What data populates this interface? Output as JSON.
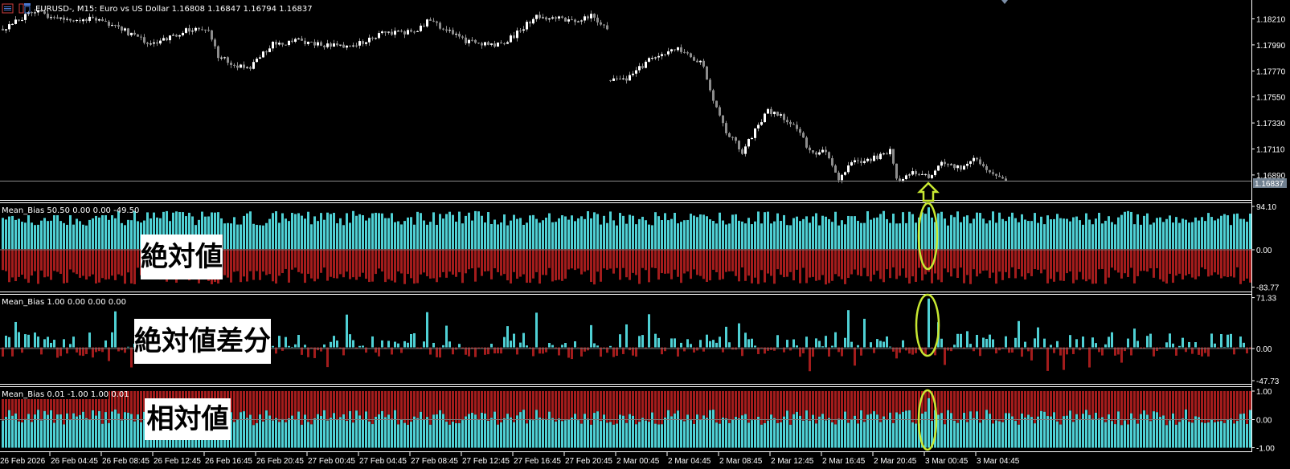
{
  "header": {
    "title": "EURUSD-, M15:  Euro vs US Dollar  1.16808 1.16847 1.16794 1.16837",
    "icons": [
      "trade-panel-icon",
      "one-click-trading-icon"
    ]
  },
  "colors": {
    "background": "#000000",
    "positive_bar": "#4fd0d4",
    "negative_bar": "#a31c1c",
    "candle_up": "#ffffff",
    "candle_down": "#8c8c8c",
    "bid_line": "#8c8c8c",
    "bid_label_bg": "#708090",
    "highlight": "#c8e832"
  },
  "price_axis": {
    "ticks": [
      "1.18210",
      "1.17990",
      "1.17770",
      "1.17550",
      "1.17330",
      "1.17110",
      "1.16890"
    ],
    "bid": "1.16837"
  },
  "price_keypoints": [
    {
      "bar": 0,
      "price": 1.18133
    },
    {
      "bar": 10,
      "price": 1.18273
    },
    {
      "bar": 15,
      "price": 1.18224
    },
    {
      "bar": 31,
      "price": 1.18203
    },
    {
      "bar": 46,
      "price": 1.17994
    },
    {
      "bar": 59,
      "price": 1.18133
    },
    {
      "bar": 64,
      "price": 1.18098
    },
    {
      "bar": 67,
      "price": 1.17889
    },
    {
      "bar": 76,
      "price": 1.17784
    },
    {
      "bar": 84,
      "price": 1.17994
    },
    {
      "bar": 92,
      "price": 1.18028
    },
    {
      "bar": 108,
      "price": 1.17959
    },
    {
      "bar": 118,
      "price": 1.18098
    },
    {
      "bar": 128,
      "price": 1.18098
    },
    {
      "bar": 133,
      "price": 1.18203
    },
    {
      "bar": 143,
      "price": 1.18028
    },
    {
      "bar": 154,
      "price": 1.17994
    },
    {
      "bar": 159,
      "price": 1.18063
    },
    {
      "bar": 166,
      "price": 1.18238
    },
    {
      "bar": 179,
      "price": 1.18182
    },
    {
      "bar": 183,
      "price": 1.18238
    },
    {
      "bar": 188,
      "price": 1.18133
    },
    {
      "bar": 189,
      "price": 1.1768
    },
    {
      "bar": 195,
      "price": 1.17714
    },
    {
      "bar": 202,
      "price": 1.17889
    },
    {
      "bar": 210,
      "price": 1.17945
    },
    {
      "bar": 218,
      "price": 1.17819
    },
    {
      "bar": 220,
      "price": 1.1761
    },
    {
      "bar": 225,
      "price": 1.17261
    },
    {
      "bar": 230,
      "price": 1.17086
    },
    {
      "bar": 233,
      "price": 1.17226
    },
    {
      "bar": 238,
      "price": 1.17435
    },
    {
      "bar": 246,
      "price": 1.17331
    },
    {
      "bar": 251,
      "price": 1.17086
    },
    {
      "bar": 256,
      "price": 1.17086
    },
    {
      "bar": 260,
      "price": 1.16842
    },
    {
      "bar": 264,
      "price": 1.17016
    },
    {
      "bar": 269,
      "price": 1.17016
    },
    {
      "bar": 274,
      "price": 1.17051
    },
    {
      "bar": 276,
      "price": 1.17121
    },
    {
      "bar": 278,
      "price": 1.16842
    },
    {
      "bar": 282,
      "price": 1.16912
    },
    {
      "bar": 288,
      "price": 1.16877
    },
    {
      "bar": 292,
      "price": 1.16982
    },
    {
      "bar": 298,
      "price": 1.16947
    },
    {
      "bar": 302,
      "price": 1.17037
    },
    {
      "bar": 307,
      "price": 1.16926
    },
    {
      "bar": 312,
      "price": 1.16828
    }
  ],
  "indicators": [
    {
      "label": "Mean_Bias 50.50 0.00 0.00 -49.50",
      "ticks": [
        "94.10",
        "0.00",
        "-83.77"
      ],
      "range": [
        -83.77,
        94.1
      ],
      "annotation": "絶対値"
    },
    {
      "label": "Mean_Bias 1.00 0.00 0.00 0.00",
      "ticks": [
        "71.33",
        "0.00",
        "-47.73"
      ],
      "range": [
        -47.73,
        71.33
      ],
      "annotation": "絶対値差分"
    },
    {
      "label": "Mean_Bias 0.01 -1.00 1.00 0.01",
      "ticks": [
        "1.00",
        "0.00",
        "-1.00"
      ],
      "range": [
        -1.0,
        1.0
      ],
      "annotation": "相対値"
    }
  ],
  "highlighted_bar": "3 Mar 00:45",
  "time_axis": {
    "labels": [
      "26 Feb 2026",
      "26 Feb 04:45",
      "26 Feb 08:45",
      "26 Feb 12:45",
      "26 Feb 16:45",
      "26 Feb 20:45",
      "27 Feb 00:45",
      "27 Feb 04:45",
      "27 Feb 08:45",
      "27 Feb 12:45",
      "27 Feb 16:45",
      "27 Feb 20:45",
      "2 Mar 00:45",
      "2 Mar 04:45",
      "2 Mar 08:45",
      "2 Mar 12:45",
      "2 Mar 16:45",
      "2 Mar 20:45",
      "3 Mar 00:45",
      "3 Mar 04:45"
    ]
  }
}
